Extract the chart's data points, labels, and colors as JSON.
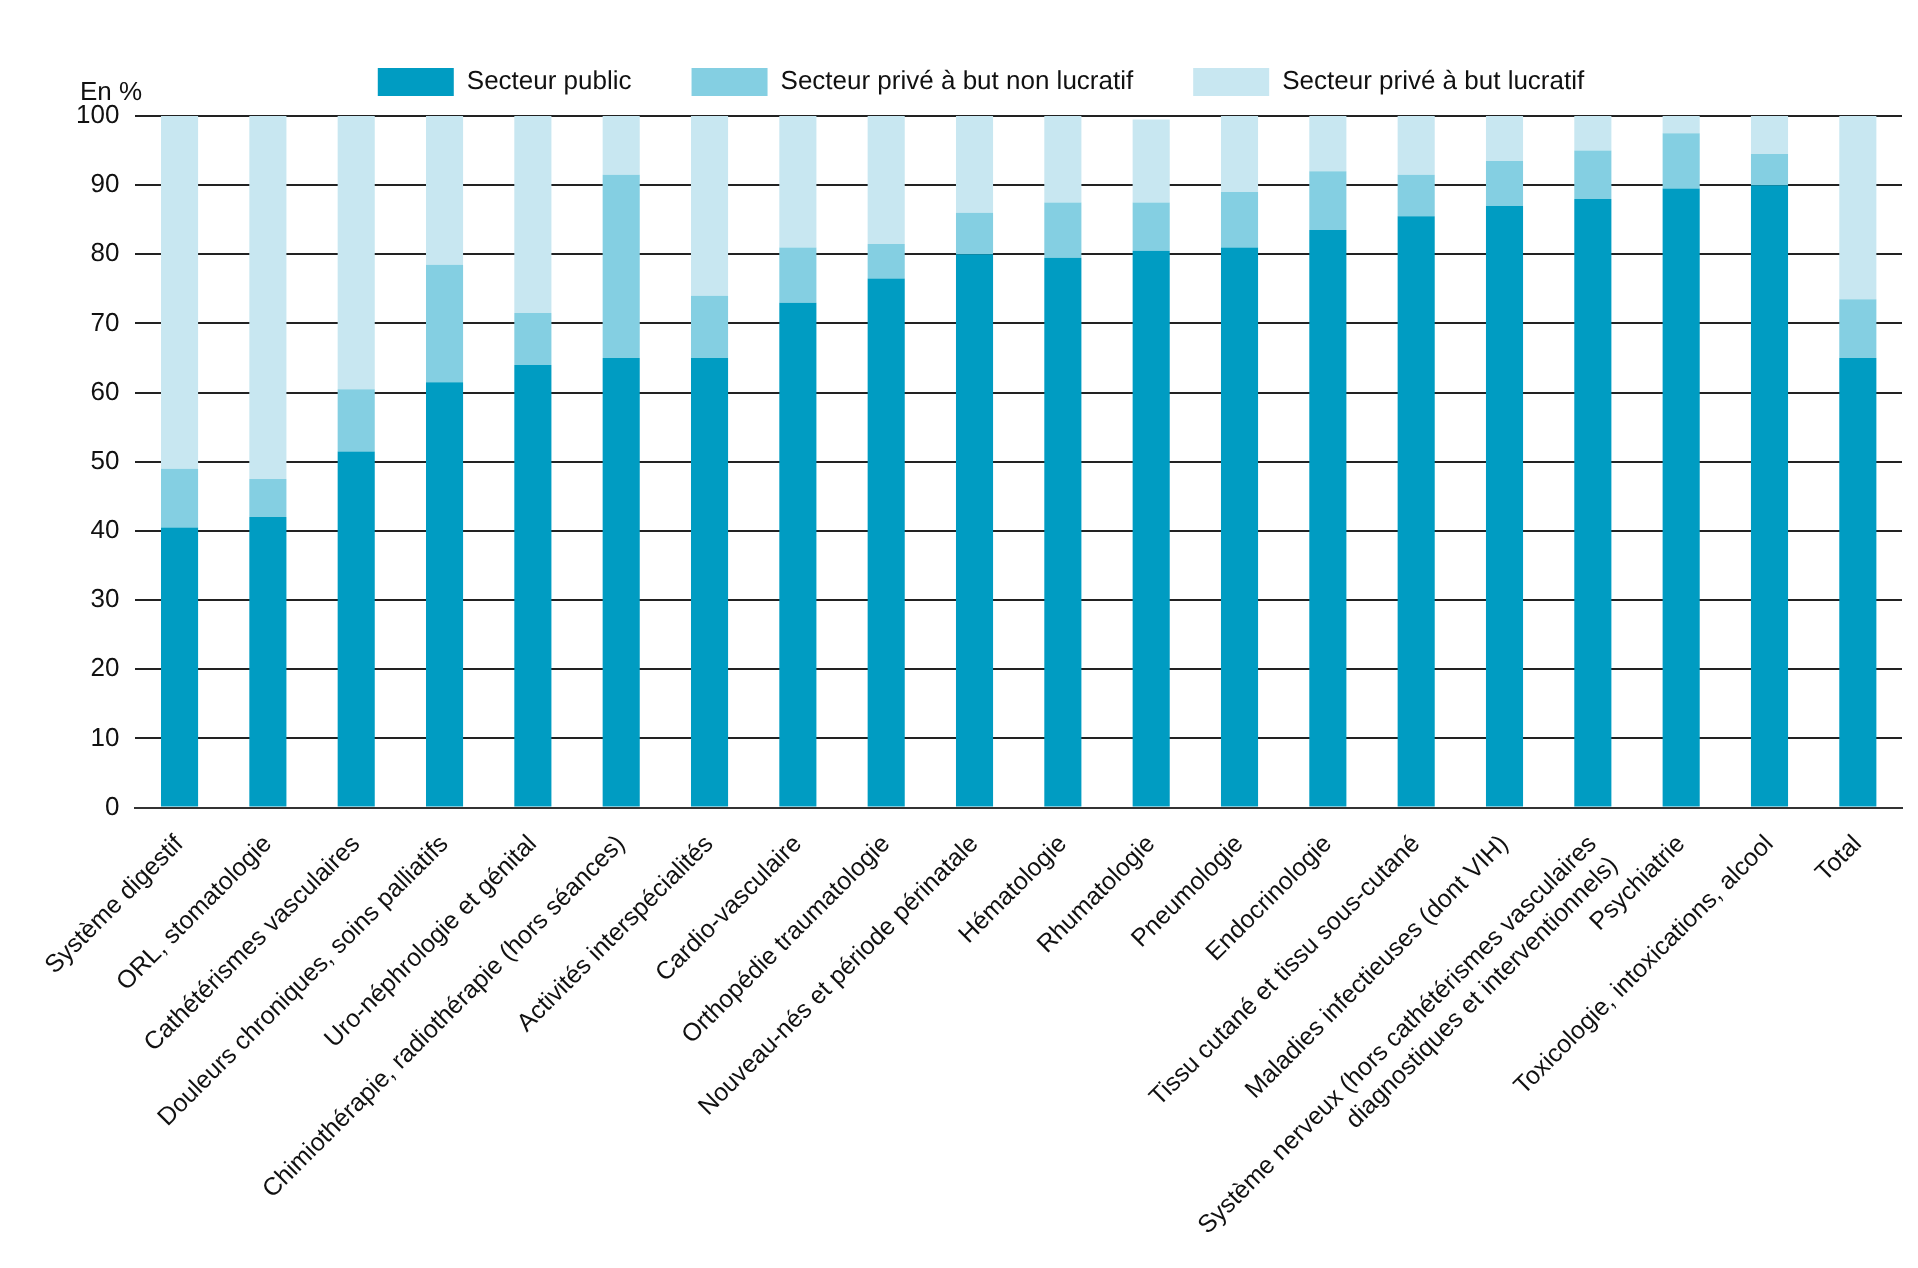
{
  "chart_data": {
    "type": "bar",
    "stacked": true,
    "ylabel": "En %",
    "categories": [
      "Système digestif",
      "ORL, stomatologie",
      "Cathétérismes vasculaires",
      "Douleurs chroniques, soins palliatifs",
      "Uro-néphrologie et génital",
      "Chimiothérapie, radiothérapie (hors séances)",
      "Activités interspécialités",
      "Cardio-vasculaire",
      "Orthopédie traumatologie",
      "Nouveau-nés et période périnatale",
      "Hématologie",
      "Rhumatologie",
      "Pneumologie",
      "Endocrinologie",
      "Tissu cutané et tissu sous-cutané",
      "Maladies infectieuses (dont VIH)",
      "Système nerveux (hors cathétérismes vasculaires\ndiagnostiques et interventionnels)",
      "Psychiatrie",
      "Toxicologie, intoxications, alcool",
      "Total"
    ],
    "series": [
      {
        "name": "Secteur public",
        "color": "#009cc2",
        "values": [
          40.5,
          42,
          51.5,
          61.5,
          64,
          65,
          65,
          73,
          76.5,
          80,
          79.5,
          80.5,
          81,
          83.5,
          85.5,
          87,
          88,
          89.5,
          90,
          65
        ]
      },
      {
        "name": "Secteur privé à but non lucratif",
        "color": "#84cfe2",
        "values": [
          8.5,
          5.5,
          9,
          17,
          7.5,
          26.5,
          9,
          8,
          5,
          6,
          8,
          7,
          8,
          8.5,
          6,
          6.5,
          7,
          8,
          4.5,
          8.5
        ]
      },
      {
        "name": "Secteur privé à but lucratif",
        "color": "#c8e7f1",
        "values": [
          51,
          52.5,
          39.5,
          21.5,
          28.5,
          8.5,
          26,
          19,
          18.5,
          14,
          12.5,
          12,
          11,
          8,
          8.5,
          6.5,
          5,
          2.5,
          5.5,
          26.5
        ]
      }
    ],
    "ylim": [
      0,
      100
    ],
    "yticks": [
      0,
      10,
      20,
      30,
      40,
      50,
      60,
      70,
      80,
      90,
      100
    ],
    "grid": "y",
    "legend": "top"
  }
}
